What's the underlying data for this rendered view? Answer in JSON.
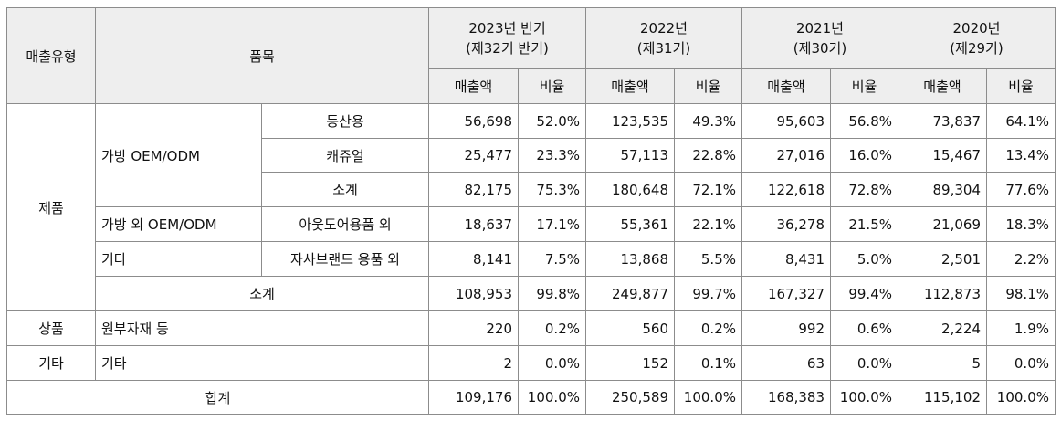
{
  "header": {
    "sales_type": "매출유형",
    "item": "품목",
    "periods": [
      {
        "year": "2023년 반기",
        "term": "(제32기 반기)"
      },
      {
        "year": "2022년",
        "term": "(제31기)"
      },
      {
        "year": "2021년",
        "term": "(제30기)"
      },
      {
        "year": "2020년",
        "term": "(제29기)"
      }
    ],
    "sales_amount": "매출액",
    "ratio": "비율"
  },
  "rows": [
    {
      "type": "제품",
      "item1": "가방 OEM/ODM",
      "item2": "등산용",
      "values": [
        "56,698",
        "52.0%",
        "123,535",
        "49.3%",
        "95,603",
        "56.8%",
        "73,837",
        "64.1%"
      ]
    },
    {
      "item2": "캐쥬얼",
      "values": [
        "25,477",
        "23.3%",
        "57,113",
        "22.8%",
        "27,016",
        "16.0%",
        "15,467",
        "13.4%"
      ]
    },
    {
      "item2": "소계",
      "values": [
        "82,175",
        "75.3%",
        "180,648",
        "72.1%",
        "122,618",
        "72.8%",
        "89,304",
        "77.6%"
      ]
    },
    {
      "item1": "가방 외 OEM/ODM",
      "item2": "아웃도어용품 외",
      "values": [
        "18,637",
        "17.1%",
        "55,361",
        "22.1%",
        "36,278",
        "21.5%",
        "21,069",
        "18.3%"
      ]
    },
    {
      "item1": "기타",
      "item2": "자사브랜드 용품 외",
      "values": [
        "8,141",
        "7.5%",
        "13,868",
        "5.5%",
        "8,431",
        "5.0%",
        "2,501",
        "2.2%"
      ]
    },
    {
      "item": "소계",
      "values": [
        "108,953",
        "99.8%",
        "249,877",
        "99.7%",
        "167,327",
        "99.4%",
        "112,873",
        "98.1%"
      ]
    },
    {
      "type": "상품",
      "item": "원부자재 등",
      "values": [
        "220",
        "0.2%",
        "560",
        "0.2%",
        "992",
        "0.6%",
        "2,224",
        "1.9%"
      ]
    },
    {
      "type": "기타",
      "item": "기타",
      "values": [
        "2",
        "0.0%",
        "152",
        "0.1%",
        "63",
        "0.0%",
        "5",
        "0.0%"
      ]
    },
    {
      "total_label": "합계",
      "values": [
        "109,176",
        "100.0%",
        "250,589",
        "100.0%",
        "168,383",
        "100.0%",
        "115,102",
        "100.0%"
      ]
    }
  ]
}
